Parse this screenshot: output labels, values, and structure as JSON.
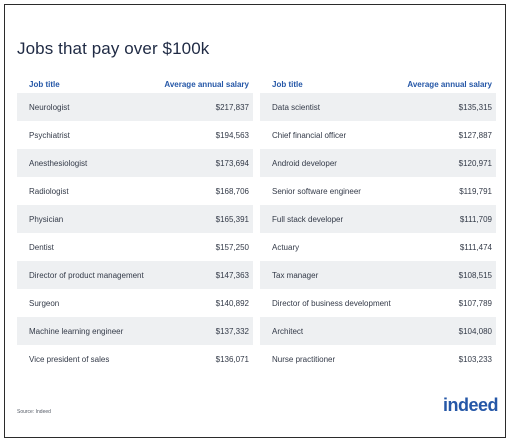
{
  "title": "Jobs that pay over $100k",
  "headers": {
    "job": "Job title",
    "salary": "Average annual salary"
  },
  "left": [
    {
      "job": "Neurologist",
      "salary": "$217,837"
    },
    {
      "job": "Psychiatrist",
      "salary": "$194,563"
    },
    {
      "job": "Anesthesiologist",
      "salary": "$173,694"
    },
    {
      "job": "Radiologist",
      "salary": "$168,706"
    },
    {
      "job": "Physician",
      "salary": "$165,391"
    },
    {
      "job": "Dentist",
      "salary": "$157,250"
    },
    {
      "job": "Director of product management",
      "salary": "$147,363"
    },
    {
      "job": "Surgeon",
      "salary": "$140,892"
    },
    {
      "job": "Machine learning engineer",
      "salary": "$137,332"
    },
    {
      "job": "Vice president of sales",
      "salary": "$136,071"
    }
  ],
  "right": [
    {
      "job": "Data scientist",
      "salary": "$135,315"
    },
    {
      "job": "Chief financial officer",
      "salary": "$127,887"
    },
    {
      "job": "Android developer",
      "salary": "$120,971"
    },
    {
      "job": "Senior software engineer",
      "salary": "$119,791"
    },
    {
      "job": "Full stack developer",
      "salary": "$111,709"
    },
    {
      "job": "Actuary",
      "salary": "$111,474"
    },
    {
      "job": "Tax manager",
      "salary": "$108,515"
    },
    {
      "job": "Director of business development",
      "salary": "$107,789"
    },
    {
      "job": "Architect",
      "salary": "$104,080"
    },
    {
      "job": "Nurse practitioner",
      "salary": "$103,233"
    }
  ],
  "source": "Source: Indeed",
  "logo": "indeed",
  "colors": {
    "accent": "#2557a7",
    "row_shade": "#eef0f2",
    "title": "#1f2a44"
  }
}
